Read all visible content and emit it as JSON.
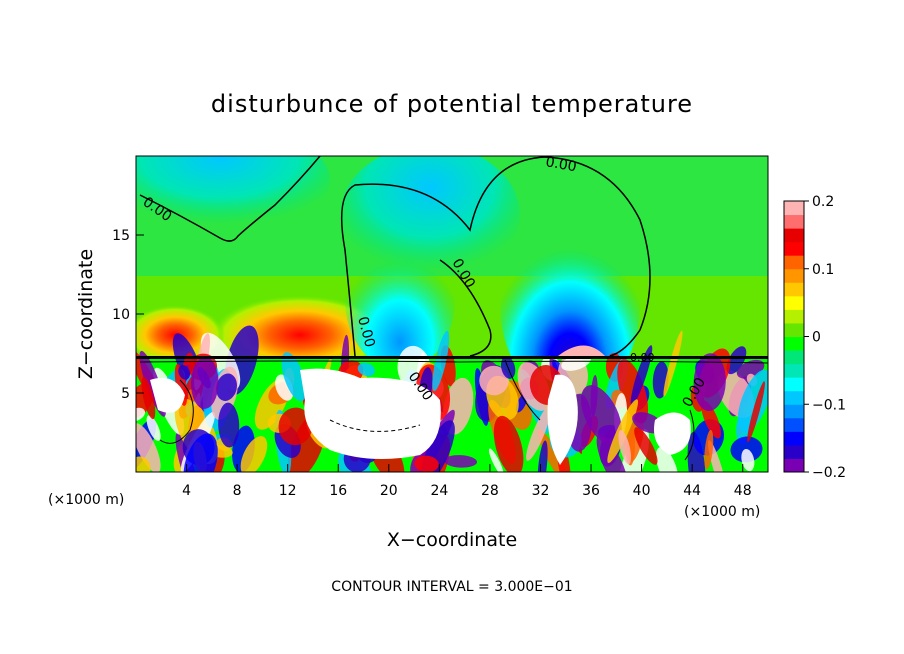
{
  "chart_data": {
    "type": "heatmap",
    "title": "disturbunce of potential temperature",
    "xlabel": "X−coordinate",
    "ylabel": "Z−coordinate",
    "x_unit_left": "(×1000 m)",
    "x_unit_right": "(×1000 m)",
    "footer": "CONTOUR INTERVAL = 3.000E−01",
    "xlim": [
      0,
      50
    ],
    "ylim": [
      0,
      20
    ],
    "x_ticks": [
      "4",
      "8",
      "12",
      "16",
      "20",
      "24",
      "28",
      "32",
      "36",
      "40",
      "44",
      "48"
    ],
    "y_ticks": [
      "5",
      "10",
      "15"
    ],
    "colorbar": {
      "range": [
        -0.2,
        0.2
      ],
      "tick_labels": [
        "0.2",
        "0.1",
        "0",
        "−0.1",
        "−0.2"
      ],
      "colors": [
        "#7a00b4",
        "#2800c8",
        "#0000ff",
        "#0050ff",
        "#0096ff",
        "#00c8ff",
        "#00ffff",
        "#00e6b4",
        "#00e678",
        "#00ff00",
        "#64e600",
        "#b4f000",
        "#ffff00",
        "#ffc800",
        "#ff9600",
        "#ff6400",
        "#ff0000",
        "#e60000",
        "#ff6e6e",
        "#ffb4b4"
      ]
    },
    "contour_labels": [
      "0.00",
      "0.00",
      "0.00",
      "0.00",
      "0.00",
      "0.00",
      "0.00"
    ],
    "contour_interval": "3.000E−01",
    "grid": false,
    "legend": "colorbar-right"
  }
}
